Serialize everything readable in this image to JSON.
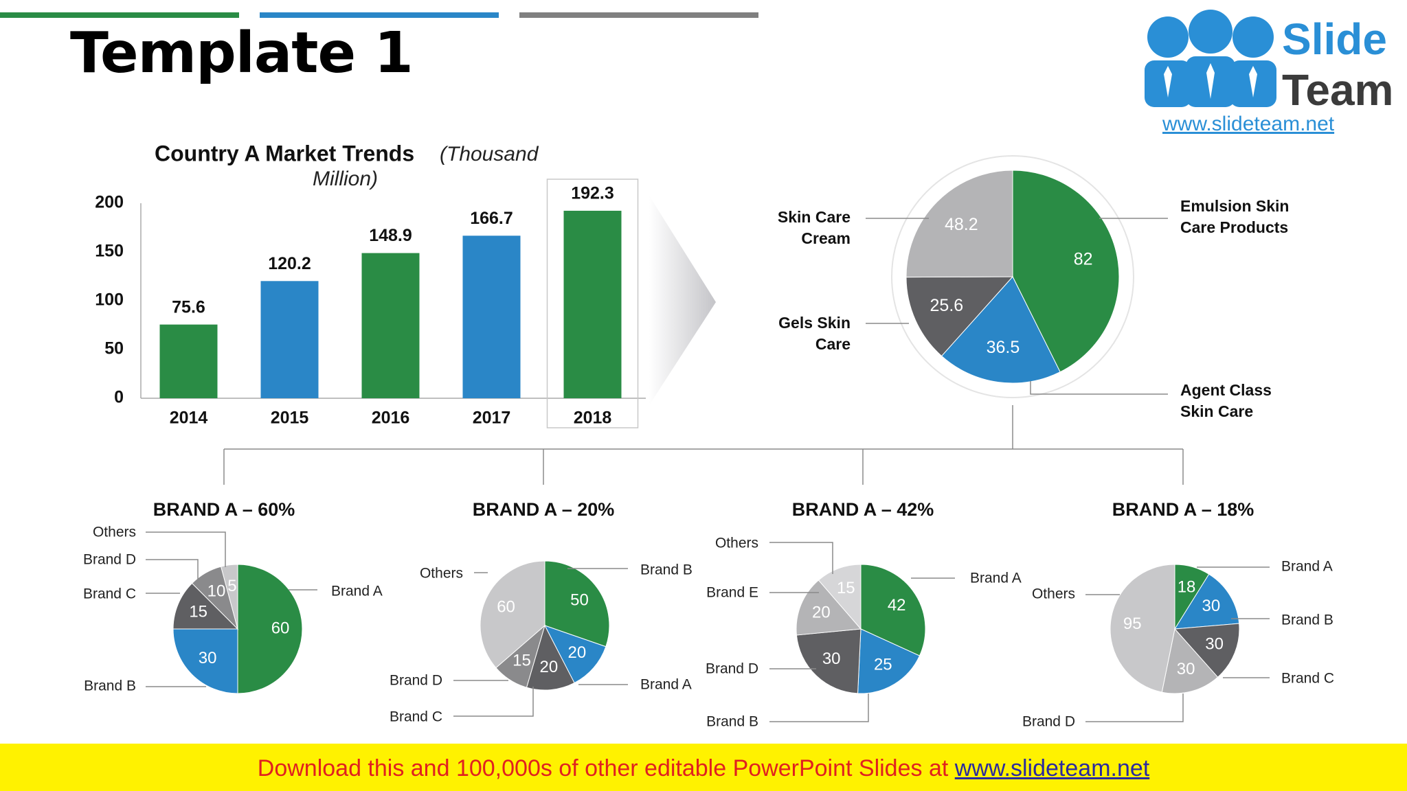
{
  "slide_title": "Template 1",
  "logo": {
    "word1": "Slide",
    "word2": "Team",
    "url": "www.slideteam.net"
  },
  "footer": {
    "text": "Download this and 100,000s of other editable PowerPoint Slides at ",
    "link": "www.slideteam.net"
  },
  "colors": {
    "green": "#2a8c45",
    "blue": "#2a86c7",
    "dark_gray": "#5f5f62",
    "mid_gray": "#8a8a8c",
    "light_gray": "#b4b4b6",
    "lighter_gray": "#c8c8ca",
    "accent_bar_gray": "#808080"
  },
  "chart_data": [
    {
      "type": "bar",
      "title": "Country A Market Trends",
      "title_unit": "(Thousand Million)",
      "categories": [
        "2014",
        "2015",
        "2016",
        "2017",
        "2018"
      ],
      "values": [
        75.6,
        120.2,
        148.9,
        166.7,
        192.3
      ],
      "value_labels": [
        "75.6",
        "120.2",
        "148.9",
        "166.7",
        "192.3"
      ],
      "bar_colors": [
        "#2a8c45",
        "#2a86c7",
        "#2a8c45",
        "#2a86c7",
        "#2a8c45"
      ],
      "yticks": [
        "0",
        "50",
        "100",
        "150",
        "200"
      ],
      "ylim": [
        0,
        200
      ],
      "highlight": "2018",
      "grid": false
    },
    {
      "type": "pie",
      "slices": [
        {
          "label": "Emulsion Skin Care Products",
          "value": 82,
          "value_label": "82",
          "color": "#2a8c45"
        },
        {
          "label": "Agent Class Skin Care",
          "value": 36.5,
          "value_label": "36.5",
          "color": "#2a86c7"
        },
        {
          "label": "Gels Skin Care",
          "value": 25.6,
          "value_label": "25.6",
          "color": "#5f5f62"
        },
        {
          "label": "Skin Care Cream",
          "value": 48.2,
          "value_label": "48.2",
          "color": "#b4b4b6"
        }
      ]
    },
    {
      "type": "pie",
      "title": "BRAND A – 60%",
      "slices": [
        {
          "label": "Brand A",
          "value": 60,
          "value_label": "60",
          "color": "#2a8c45"
        },
        {
          "label": "Brand B",
          "value": 30,
          "value_label": "30",
          "color": "#2a86c7"
        },
        {
          "label": "Brand C",
          "value": 15,
          "value_label": "15",
          "color": "#5f5f62"
        },
        {
          "label": "Brand D",
          "value": 10,
          "value_label": "10",
          "color": "#8a8a8c"
        },
        {
          "label": "Others",
          "value": 5,
          "value_label": "5",
          "color": "#c8c8ca"
        }
      ]
    },
    {
      "type": "pie",
      "title": "BRAND A – 20%",
      "slices": [
        {
          "label": "Brand B",
          "value": 50,
          "value_label": "50",
          "color": "#2a8c45"
        },
        {
          "label": "Brand A",
          "value": 20,
          "value_label": "20",
          "color": "#2a86c7"
        },
        {
          "label": "Brand C",
          "value": 20,
          "value_label": "20",
          "color": "#5f5f62"
        },
        {
          "label": "Brand D",
          "value": 15,
          "value_label": "15",
          "color": "#8a8a8c"
        },
        {
          "label": "Others",
          "value": 60,
          "value_label": "60",
          "color": "#c8c8ca"
        }
      ]
    },
    {
      "type": "pie",
      "title": "BRAND A – 42%",
      "slices": [
        {
          "label": "Brand A",
          "value": 42,
          "value_label": "42",
          "color": "#2a8c45"
        },
        {
          "label": "Brand B",
          "value": 25,
          "value_label": "25",
          "color": "#2a86c7"
        },
        {
          "label": "Brand D",
          "value": 30,
          "value_label": "30",
          "color": "#5f5f62"
        },
        {
          "label": "Brand E",
          "value": 20,
          "value_label": "20",
          "color": "#b4b4b6"
        },
        {
          "label": "Others",
          "value": 15,
          "value_label": "15",
          "color": "#d6d6d8"
        }
      ]
    },
    {
      "type": "pie",
      "title": "BRAND A – 18%",
      "slices": [
        {
          "label": "Brand A",
          "value": 18,
          "value_label": "18",
          "color": "#2a8c45"
        },
        {
          "label": "Brand B",
          "value": 30,
          "value_label": "30",
          "color": "#2a86c7"
        },
        {
          "label": "Brand C",
          "value": 30,
          "value_label": "30",
          "color": "#5f5f62"
        },
        {
          "label": "Brand D",
          "value": 30,
          "value_label": "30",
          "color": "#b4b4b6"
        },
        {
          "label": "Others",
          "value": 95,
          "value_label": "95",
          "color": "#c8c8ca"
        }
      ]
    }
  ]
}
